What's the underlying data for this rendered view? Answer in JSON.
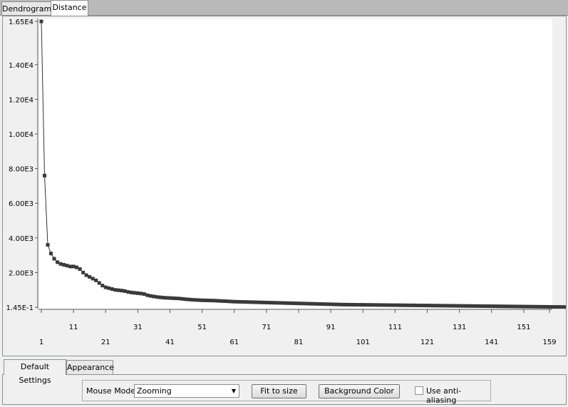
{
  "tabs": {
    "dendrogram": "Dendrogram",
    "distance": "Distance"
  },
  "chart_data": {
    "type": "line",
    "title": "",
    "xlabel": "",
    "ylabel": "",
    "x_ticks_top": [
      "11",
      "31",
      "51",
      "71",
      "91",
      "111",
      "131",
      "151"
    ],
    "x_ticks_bottom": [
      "1",
      "21",
      "41",
      "61",
      "81",
      "101",
      "121",
      "141",
      "159"
    ],
    "x_tick_positions": [
      1,
      11,
      21,
      31,
      41,
      51,
      61,
      71,
      81,
      91,
      101,
      111,
      121,
      131,
      141,
      151,
      159
    ],
    "y_tick_labels": [
      "1.45E-1",
      "2.00E3",
      "4.00E3",
      "6.00E3",
      "8.00E3",
      "1.00E4",
      "1.20E4",
      "1.40E4",
      "1.65E4"
    ],
    "y_tick_values": [
      0.145,
      2000,
      4000,
      6000,
      8000,
      10000,
      12000,
      14000,
      16500
    ],
    "xlim": [
      1,
      159
    ],
    "ylim": [
      0.145,
      16500
    ],
    "series": [
      {
        "values": [
          16500,
          7600,
          3600,
          3100,
          2800,
          2600,
          2500,
          2450,
          2400,
          2350,
          2350,
          2300,
          2200,
          2000,
          1850,
          1750,
          1650,
          1550,
          1400,
          1250,
          1150,
          1100,
          1050,
          1000,
          980,
          960,
          930,
          880,
          850,
          830,
          810,
          790,
          760,
          690,
          650,
          620,
          590,
          570,
          550,
          540,
          530,
          520,
          510,
          500,
          480,
          460,
          445,
          430,
          420,
          410,
          400,
          395,
          390,
          385,
          380,
          370,
          360,
          350,
          340,
          330,
          320,
          315,
          310,
          305,
          300,
          295,
          290,
          285,
          280,
          275,
          270,
          265,
          260,
          255,
          250,
          245,
          240,
          235,
          230,
          225,
          220,
          215,
          210,
          205,
          200,
          195,
          190,
          185,
          180,
          175,
          170,
          165,
          160,
          155,
          150,
          148,
          146,
          144,
          142,
          140,
          138,
          136,
          134,
          132,
          130,
          128,
          126,
          124,
          122,
          120,
          118,
          116,
          114,
          112,
          110,
          108,
          106,
          104,
          102,
          100,
          98,
          96,
          94,
          92,
          90,
          88,
          86,
          84,
          82,
          80,
          78,
          76,
          74,
          72,
          70,
          68,
          66,
          64,
          62,
          60,
          58,
          56,
          54,
          52,
          50,
          48,
          46,
          44,
          42,
          40,
          38,
          36,
          34,
          32,
          30,
          28,
          26,
          24,
          22,
          20,
          18,
          16,
          14,
          12
        ]
      }
    ],
    "grid": false
  },
  "lower_tabs": {
    "default_settings": "Default Settings",
    "appearance": "Appearance"
  },
  "settings": {
    "mouse_mode_label": "Mouse Mode",
    "mouse_mode_value": "Zooming",
    "fit_button": "Fit to size",
    "background_button": "Background Color",
    "antialias_label": "Use anti-aliasing",
    "antialias_checked": false
  }
}
